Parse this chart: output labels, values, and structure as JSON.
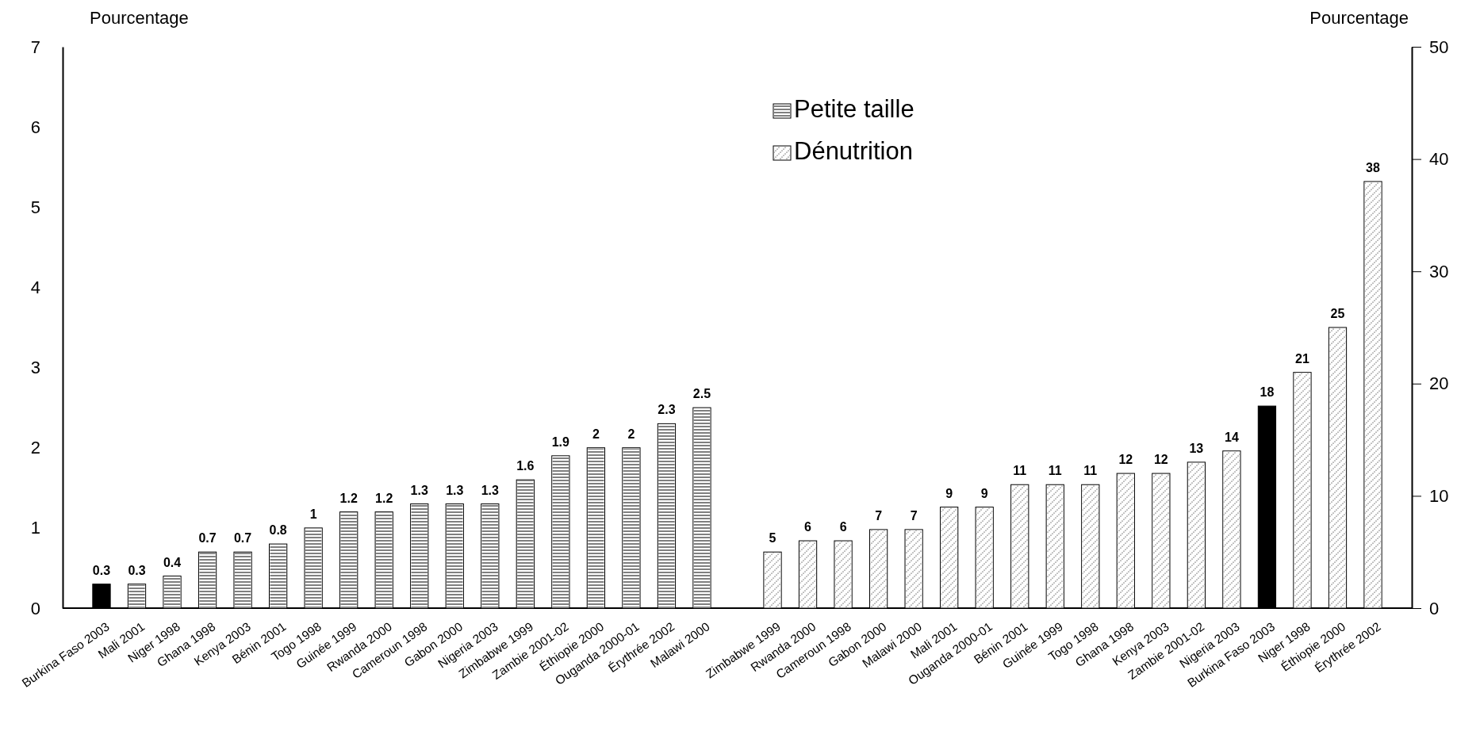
{
  "chart_data": {
    "type": "bar",
    "categories": [
      "Burkina Faso 2003",
      "Mali 2001",
      "Niger 1998",
      "Ghana 1998",
      "Kenya 2003",
      "Bénin 2001",
      "Togo 1998",
      "Guinée 1999",
      "Rwanda 2000",
      "Cameroun 1998",
      "Gabon 2000",
      "Nigeria 2003",
      "Zimbabwe 1999",
      "Zambie 2001-02",
      "Éthiopie 2000",
      "Ouganda  2000-01",
      "Érythrée 2002",
      "Malawi 2000",
      null,
      "Zimbabwe 1999",
      "Rwanda 2000",
      "Cameroun 1998",
      "Gabon 2000",
      "Malawi 2000",
      "Mali 2001",
      "Ouganda  2000-01",
      "Bénin 2001",
      "Guinée 1999",
      "Togo 1998",
      "Ghana 1998",
      "Kenya 2003",
      "Zambie 2001-02",
      "Nigeria 2003",
      "Burkina Faso 2003",
      "Niger 1998",
      "Éthiopie 2000",
      "Érythrée 2002"
    ],
    "series": [
      {
        "name": "Petite taille",
        "color": "#ffffff",
        "colors": [
          "#000000",
          "#ffffff",
          "#ffffff",
          "#ffffff",
          "#ffffff",
          "#ffffff",
          "#ffffff",
          "#ffffff",
          "#ffffff",
          "#ffffff",
          "#ffffff",
          "#ffffff",
          "#ffffff",
          "#ffffff",
          "#ffffff",
          "#ffffff",
          "#ffffff",
          "#ffffff",
          null,
          null,
          null,
          null,
          null,
          null,
          null,
          null,
          null,
          null,
          null,
          null,
          null,
          null,
          null,
          null,
          null,
          null,
          null
        ],
        "values": [
          0.3,
          0.3,
          0.4,
          0.7,
          0.7,
          0.8,
          1,
          1.2,
          1.2,
          1.3,
          1.3,
          1.3,
          1.6,
          1.9,
          2,
          2,
          2.3,
          2.5,
          null,
          null,
          null,
          null,
          null,
          null,
          null,
          null,
          null,
          null,
          null,
          null,
          null,
          null,
          null,
          null,
          null,
          null,
          null
        ]
      },
      {
        "name": "Dénutrition",
        "axis": "y2",
        "color": "#ffffff",
        "colors": [
          null,
          null,
          null,
          null,
          null,
          null,
          null,
          null,
          null,
          null,
          null,
          null,
          null,
          null,
          null,
          null,
          null,
          null,
          null,
          "#ffffff",
          "#ffffff",
          "#ffffff",
          "#ffffff",
          "#ffffff",
          "#ffffff",
          "#ffffff",
          "#ffffff",
          "#ffffff",
          "#ffffff",
          "#ffffff",
          "#ffffff",
          "#ffffff",
          "#ffffff",
          "#000000",
          "#ffffff",
          "#ffffff",
          "#ffffff"
        ],
        "values": [
          null,
          null,
          null,
          null,
          null,
          null,
          null,
          null,
          null,
          null,
          null,
          null,
          null,
          null,
          null,
          null,
          null,
          null,
          null,
          5,
          6,
          6,
          7,
          7,
          9,
          9,
          11,
          11,
          11,
          12,
          12,
          13,
          14,
          18,
          21,
          25,
          38
        ]
      }
    ],
    "ylabel": "Pourcentage",
    "y2label": "Pourcentage",
    "ylim": [
      0,
      7
    ],
    "yticks": [
      0,
      1,
      2,
      3,
      4,
      5,
      6,
      7
    ],
    "y2lim": [
      0,
      50
    ],
    "y2ticks": [
      0,
      10,
      20,
      30,
      40,
      50
    ],
    "data_labels": true,
    "legend": "top",
    "grid": false
  }
}
